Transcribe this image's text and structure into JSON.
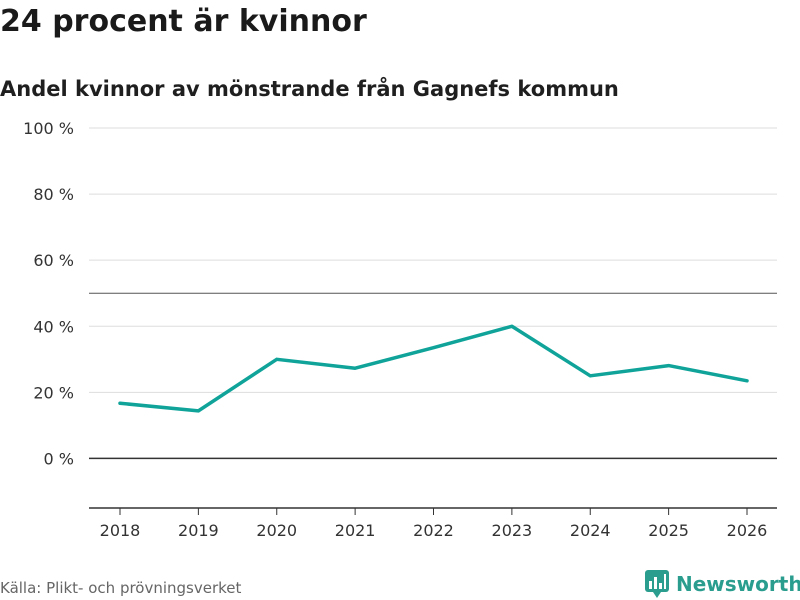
{
  "header": {
    "title": "24 procent är kvinnor",
    "subtitle": "Andel kvinnor av mönstrande från Gagnefs kommun"
  },
  "footer": {
    "source": "Källa: Plikt- och prövningsverket",
    "brand": "Newsworthy"
  },
  "colors": {
    "line": "#0fa39a",
    "brand": "#2a9d8f"
  },
  "chart_data": {
    "type": "line",
    "title": "24 procent är kvinnor",
    "subtitle": "Andel kvinnor av mönstrande från Gagnefs kommun",
    "xlabel": "",
    "ylabel": "",
    "x": [
      2018,
      2019,
      2020,
      2021,
      2022,
      2023,
      2024,
      2025,
      2026
    ],
    "series": [
      {
        "name": "Andel kvinnor",
        "values": [
          16.7,
          14.4,
          30.0,
          27.3,
          33.5,
          40.0,
          25.0,
          28.1,
          23.5
        ]
      }
    ],
    "ylim": [
      -15,
      100
    ],
    "yticks": [
      0,
      20,
      40,
      60,
      80,
      100
    ],
    "ytick_labels": [
      "0 %",
      "20 %",
      "40 %",
      "60 %",
      "80 %",
      "100 %"
    ],
    "xtick_labels": [
      "2018",
      "2019",
      "2020",
      "2021",
      "2022",
      "2023",
      "2024",
      "2025",
      "2026"
    ],
    "reference_line": 50,
    "grid": true
  }
}
